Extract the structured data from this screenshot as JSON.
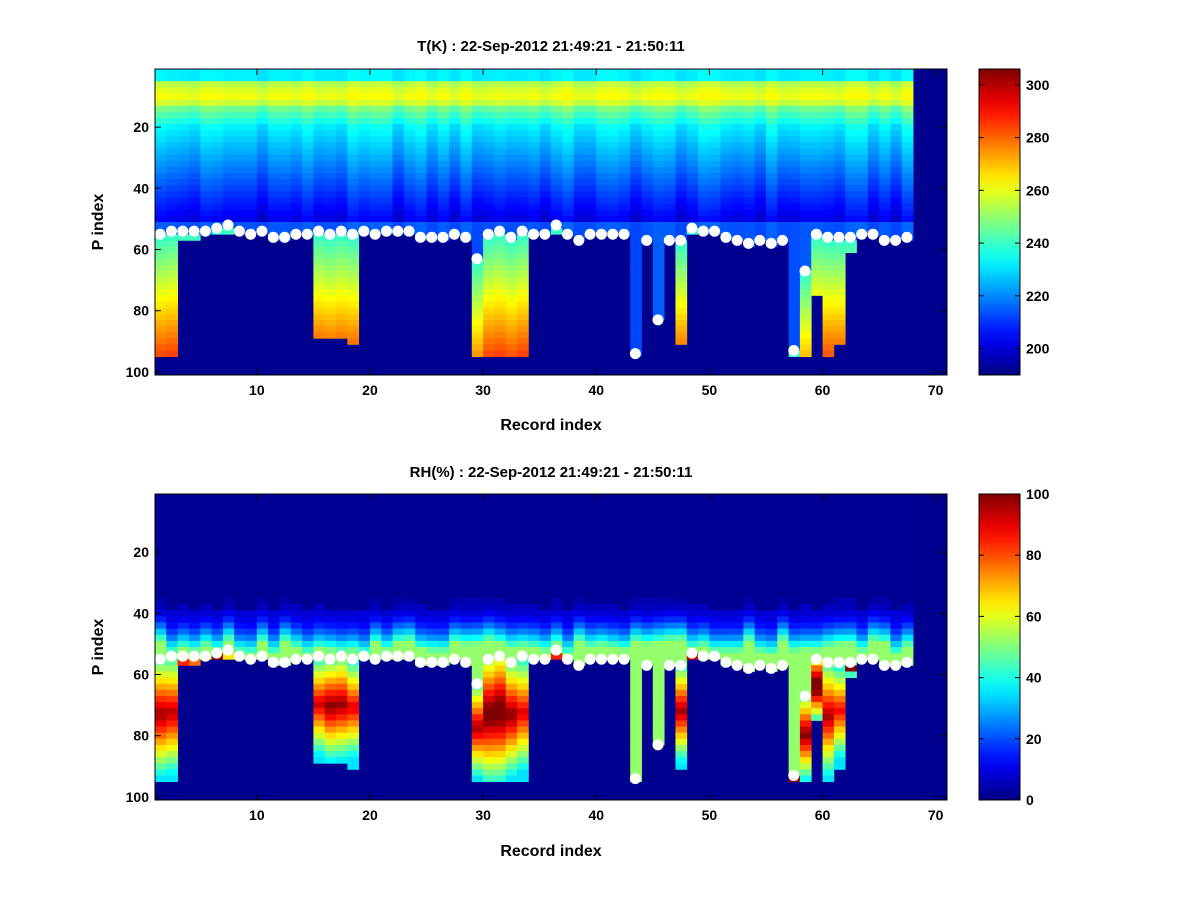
{
  "chart_data": [
    {
      "type": "heatmap",
      "title": "T(K) : 22-Sep-2012 21:49:21 - 21:50:11",
      "xlabel": "Record index",
      "ylabel": "P index",
      "xlim": [
        1,
        71
      ],
      "ylim": [
        1,
        101
      ],
      "y_reversed": true,
      "xticks": [
        10,
        20,
        30,
        40,
        50,
        60,
        70
      ],
      "yticks": [
        20,
        40,
        60,
        80,
        100
      ],
      "colormap": "jet",
      "clim": [
        190,
        306
      ],
      "colorbar_ticks": [
        200,
        220,
        240,
        260,
        280,
        300
      ],
      "fill_color": "#00008f",
      "num_records": 67,
      "colorbar_placement": "right"
    },
    {
      "type": "heatmap",
      "title": "RH(%) : 22-Sep-2012 21:49:21 - 21:50:11",
      "xlabel": "Record index",
      "ylabel": "P index",
      "xlim": [
        1,
        71
      ],
      "ylim": [
        1,
        101
      ],
      "y_reversed": true,
      "xticks": [
        10,
        20,
        30,
        40,
        50,
        60,
        70
      ],
      "yticks": [
        20,
        40,
        60,
        80,
        100
      ],
      "colormap": "jet",
      "clim": [
        0,
        100
      ],
      "colorbar_ticks": [
        0,
        20,
        40,
        60,
        80,
        100
      ],
      "fill_color": "#00008f",
      "num_records": 67,
      "colorbar_placement": "right"
    }
  ],
  "profiles": {
    "marker_color": "#ffffff",
    "surface_index": [
      55,
      54,
      54,
      54,
      54,
      53,
      52,
      54,
      55,
      54,
      56,
      56,
      55,
      55,
      54,
      55,
      54,
      55,
      54,
      55,
      54,
      54,
      54,
      56,
      56,
      56,
      55,
      56,
      63,
      55,
      54,
      56,
      54,
      55,
      55,
      52,
      55,
      57,
      55,
      55,
      55,
      55,
      94,
      57,
      83,
      57,
      57,
      53,
      54,
      54,
      56,
      57,
      58,
      57,
      58,
      57,
      93,
      67,
      55,
      56,
      56,
      56,
      55,
      55,
      57,
      57,
      56
    ],
    "lower_extent": [
      95,
      95,
      57,
      57,
      55,
      55,
      55,
      55,
      55,
      55,
      55,
      55,
      55,
      55,
      89,
      89,
      89,
      90,
      55,
      55,
      55,
      55,
      55,
      55,
      55,
      55,
      55,
      55,
      95,
      95,
      94,
      94,
      95,
      55,
      55,
      55,
      55,
      55,
      55,
      55,
      55,
      55,
      94,
      57,
      83,
      57,
      90,
      55,
      55,
      55,
      55,
      55,
      55,
      55,
      55,
      55,
      95,
      95,
      74,
      95,
      91,
      60,
      55,
      55,
      55,
      55,
      55
    ]
  }
}
